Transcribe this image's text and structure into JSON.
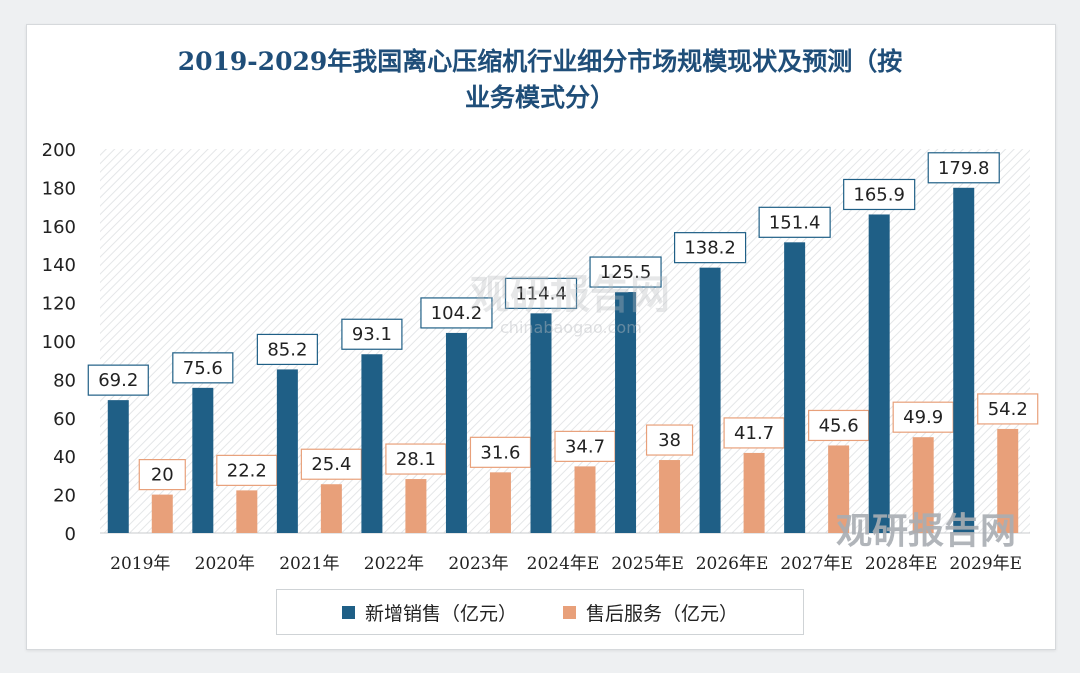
{
  "chart_data": {
    "type": "bar",
    "title_lines": [
      "2019-2029年我国离心压缩机行业细分市场规模现状及预测（按",
      "业务模式分）"
    ],
    "categories": [
      "2019年",
      "2020年",
      "2021年",
      "2022年",
      "2023年",
      "2024年E",
      "2025年E",
      "2026年E",
      "2027年E",
      "2028年E",
      "2029年E"
    ],
    "series": [
      {
        "name": "新增销售（亿元）",
        "color": "#1f5f86",
        "label_border": "#1f5f86",
        "values": [
          69.2,
          75.6,
          85.2,
          93.1,
          104.2,
          114.4,
          125.5,
          138.2,
          151.4,
          165.9,
          179.8
        ]
      },
      {
        "name": "售后服务（亿元）",
        "color": "#e8a07a",
        "label_border": "#e8a07a",
        "values": [
          20,
          22.2,
          25.4,
          28.1,
          31.6,
          34.7,
          38,
          41.7,
          45.6,
          49.9,
          54.2
        ]
      }
    ],
    "ylim": [
      0,
      200
    ],
    "yticks": [
      0,
      20,
      40,
      60,
      80,
      100,
      120,
      140,
      160,
      180,
      200
    ],
    "xlabel": "",
    "ylabel": "",
    "legend_position": "bottom"
  },
  "watermark": {
    "center_text": "观研报告网",
    "center_url": "chinabaogao.com",
    "corner_text": "观研报告网"
  }
}
